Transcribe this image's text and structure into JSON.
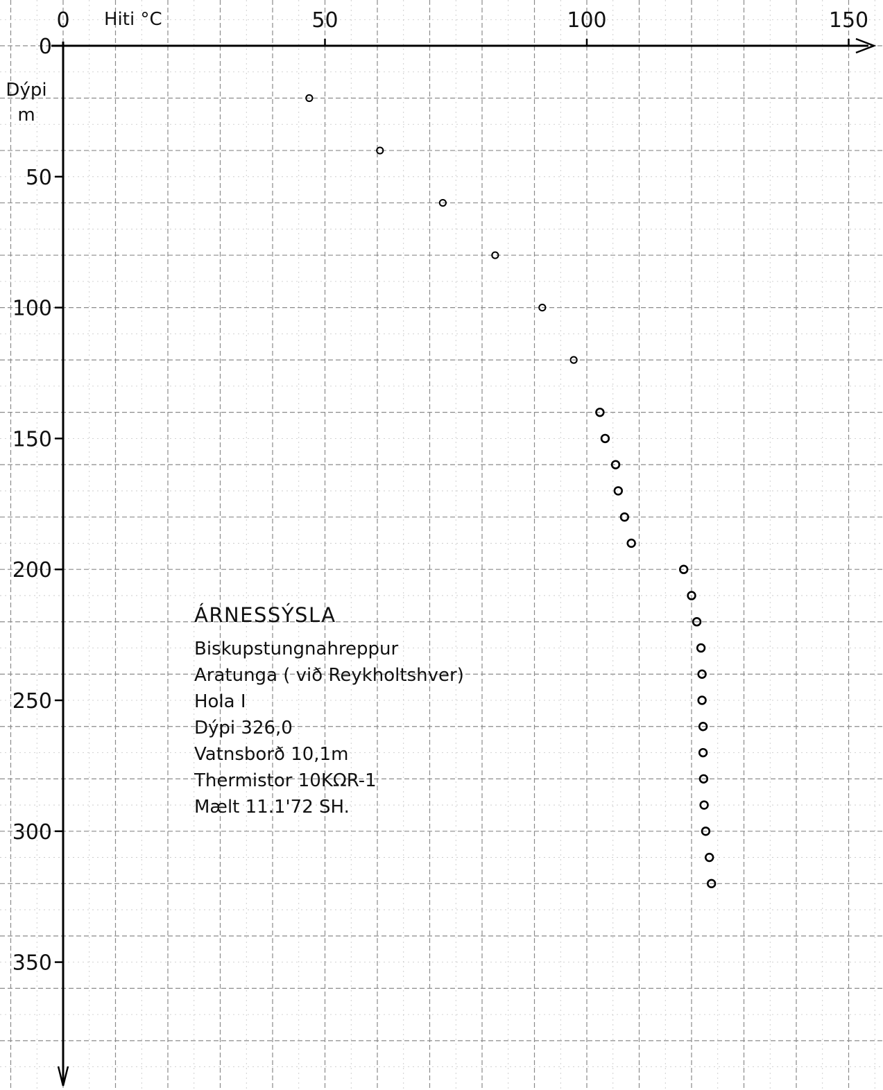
{
  "chart_data": {
    "type": "scatter",
    "title": "",
    "xlabel": "Hiti °C",
    "ylabel": "Dýpi m",
    "xlim": [
      0,
      150
    ],
    "ylim": [
      0,
      400
    ],
    "x_ticks": [
      "0",
      "50",
      "100",
      "150"
    ],
    "y_ticks": [
      "0",
      "50",
      "100",
      "150",
      "200",
      "250",
      "300",
      "350"
    ],
    "grid": true,
    "points": [
      {
        "temp": 47,
        "depth": 20
      },
      {
        "temp": 60.5,
        "depth": 40
      },
      {
        "temp": 72.5,
        "depth": 60
      },
      {
        "temp": 82.5,
        "depth": 80
      },
      {
        "temp": 91.5,
        "depth": 100
      },
      {
        "temp": 97.5,
        "depth": 120
      },
      {
        "temp": 102.5,
        "depth": 140
      },
      {
        "temp": 103.5,
        "depth": 150
      },
      {
        "temp": 105.5,
        "depth": 160
      },
      {
        "temp": 106,
        "depth": 170
      },
      {
        "temp": 107.2,
        "depth": 180
      },
      {
        "temp": 108.5,
        "depth": 190
      },
      {
        "temp": 118.5,
        "depth": 200
      },
      {
        "temp": 120,
        "depth": 210
      },
      {
        "temp": 121,
        "depth": 220
      },
      {
        "temp": 121.8,
        "depth": 230
      },
      {
        "temp": 122,
        "depth": 240
      },
      {
        "temp": 122,
        "depth": 250
      },
      {
        "temp": 122.2,
        "depth": 260
      },
      {
        "temp": 122.2,
        "depth": 270
      },
      {
        "temp": 122.3,
        "depth": 280
      },
      {
        "temp": 122.4,
        "depth": 290
      },
      {
        "temp": 122.7,
        "depth": 300
      },
      {
        "temp": 123.4,
        "depth": 310
      },
      {
        "temp": 123.8,
        "depth": 320
      }
    ]
  },
  "annotation": {
    "title": "ÁRNESSÝSLA",
    "lines": [
      "Biskupstungnahreppur",
      "Aratunga ( við Reykholtshver)",
      "Hola I",
      "Dýpi 326,0",
      "Vatnsborð 10,1m",
      "Thermistor 10KΩR-1",
      "Mælt 11.1'72 SH."
    ]
  }
}
